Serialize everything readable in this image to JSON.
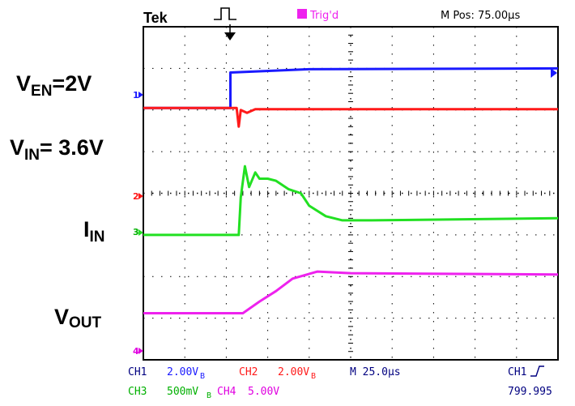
{
  "header": {
    "brand": "Tek",
    "trigger_status": "Trig'd",
    "m_pos": "M Pos: 75.00µs"
  },
  "labels": {
    "ven": {
      "main": "V",
      "sub": "EN",
      "value": "=2V"
    },
    "vin": {
      "main": "V",
      "sub": "IN",
      "value": "= 3.6V"
    },
    "iin": {
      "main": "I",
      "sub": "IN"
    },
    "vout": {
      "main": "V",
      "sub": "OUT"
    }
  },
  "footer": {
    "ch1": "CH1",
    "ch1_scale": "2.00V",
    "ch1_bw": "B",
    "ch2": "CH2",
    "ch2_scale": "2.00V",
    "ch2_bw": "B",
    "timebase": "M 25.0µs",
    "trig_src": "CH1",
    "ch3": "CH3",
    "ch3_scale": "500mV",
    "ch3_bw": "B",
    "ch4": "CH4",
    "ch4_scale": "5.00V",
    "trig_level": "799.995"
  },
  "markers": {
    "ch1": "1",
    "ch2": "2",
    "ch3": "3",
    "ch4": "4"
  },
  "colors": {
    "ch1": "#1a1aff",
    "ch2": "#ff1a1a",
    "ch3": "#22e022",
    "ch4": "#ee22ee",
    "footer_blue": "#1a1aff",
    "footer_red": "#ff1a1a",
    "footer_green": "#00b000",
    "footer_magenta": "#e000e0",
    "footer_dark": "#000080"
  },
  "chart_data": {
    "type": "line",
    "x_divisions": 10,
    "y_divisions": 8,
    "x_range": [
      0,
      10
    ],
    "y_range": [
      0,
      8
    ],
    "series": [
      {
        "name": "CH1",
        "x": [
          0,
          2.1,
          2.1,
          4.0,
          10.0
        ],
        "y": [
          6.05,
          6.05,
          6.9,
          6.98,
          7.0
        ]
      },
      {
        "name": "CH2",
        "x": [
          0,
          2.25,
          2.3,
          2.35,
          2.5,
          2.7,
          10.0
        ],
        "y": [
          6.05,
          6.05,
          5.6,
          6.0,
          5.93,
          6.02,
          6.02
        ]
      },
      {
        "name": "CH3",
        "x": [
          0,
          2.3,
          2.35,
          2.45,
          2.55,
          2.7,
          2.8,
          3.0,
          3.2,
          3.5,
          3.8,
          4.0,
          4.4,
          4.8,
          5.5,
          10.0
        ],
        "y": [
          3.0,
          3.0,
          3.9,
          4.65,
          4.15,
          4.5,
          4.35,
          4.35,
          4.3,
          4.1,
          4.0,
          3.7,
          3.45,
          3.35,
          3.35,
          3.4
        ]
      },
      {
        "name": "CH4",
        "x": [
          0,
          2.4,
          2.8,
          3.2,
          3.6,
          4.2,
          5.0,
          10.0
        ],
        "y": [
          1.12,
          1.12,
          1.4,
          1.65,
          1.95,
          2.12,
          2.08,
          2.05
        ]
      }
    ]
  }
}
